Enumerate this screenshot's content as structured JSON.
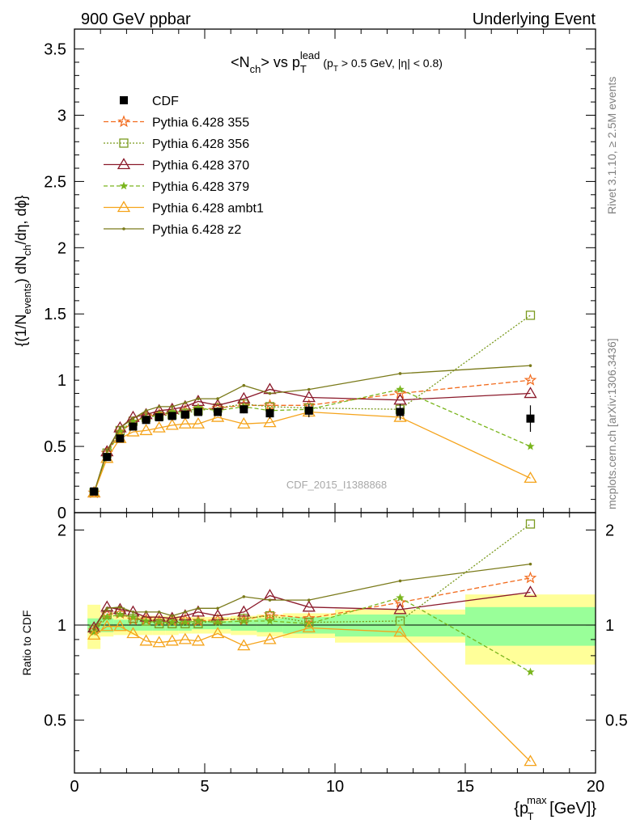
{
  "header": {
    "left": "900 GeV ppbar",
    "right": "Underlying Event"
  },
  "side_text": {
    "top": "Rivet 3.1.10, ≥ 2.5M events",
    "bottom": "mcplots.cern.ch [arXiv:1306.3436]"
  },
  "watermark": "CDF_2015_I1388868",
  "chart_data": [
    {
      "type": "line",
      "title_parts": {
        "a": "<N",
        "b": "ch",
        "c": "> vs p",
        "d": "T",
        "e": "lead",
        "f": "(p",
        "g": "T",
        "h": " > 0.5 GeV, |η| < 0.8)"
      },
      "ylabel_parts": {
        "a": "{(1/N",
        "b": "events",
        "c": ") dN",
        "d": "ch",
        "e": "/dη, dϕ}"
      },
      "xlim": [
        0,
        20
      ],
      "ylim": [
        0,
        3.65
      ],
      "yticks": [
        "0",
        "0.5",
        "1",
        "1.5",
        "2",
        "2.5",
        "3",
        "3.5"
      ],
      "grid": false,
      "legend_position": "top-left",
      "legend": [
        {
          "label": "CDF",
          "color": "#000000",
          "marker": "square-filled",
          "dash": ""
        },
        {
          "label": "Pythia 6.428 355",
          "color": "#f26b1d",
          "marker": "star-open",
          "dash": "6,3"
        },
        {
          "label": "Pythia 6.428 356",
          "color": "#7a9a1e",
          "marker": "square-open",
          "dash": "2,2"
        },
        {
          "label": "Pythia 6.428 370",
          "color": "#8b1a2b",
          "marker": "triangle-open",
          "dash": ""
        },
        {
          "label": "Pythia 6.428 379",
          "color": "#7ab51d",
          "marker": "star-filled",
          "dash": "5,3"
        },
        {
          "label": "Pythia 6.428 ambt1",
          "color": "#f5a31a",
          "marker": "triangle-open",
          "dash": ""
        },
        {
          "label": "Pythia 6.428 z2",
          "color": "#7a7a1a",
          "marker": "dot",
          "dash": ""
        }
      ],
      "x": [
        0.75,
        1.25,
        1.75,
        2.25,
        2.75,
        3.25,
        3.75,
        4.25,
        4.75,
        5.5,
        6.5,
        7.5,
        9.0,
        12.5,
        17.5
      ],
      "data": {
        "name": "CDF",
        "y": [
          0.16,
          0.42,
          0.56,
          0.65,
          0.7,
          0.72,
          0.73,
          0.74,
          0.76,
          0.76,
          0.78,
          0.75,
          0.77,
          0.76,
          0.71
        ],
        "err": [
          0.01,
          0.02,
          0.02,
          0.02,
          0.02,
          0.02,
          0.02,
          0.02,
          0.02,
          0.02,
          0.03,
          0.04,
          0.05,
          0.06,
          0.1
        ]
      },
      "series": [
        {
          "name": "Pythia 6.428 355",
          "color": "#f26b1d",
          "y": [
            0.15,
            0.45,
            0.61,
            0.68,
            0.73,
            0.74,
            0.75,
            0.77,
            0.78,
            0.79,
            0.81,
            0.81,
            0.81,
            0.9,
            1.0
          ]
        },
        {
          "name": "Pythia 6.428 356",
          "color": "#7a9a1e",
          "y": [
            0.15,
            0.45,
            0.62,
            0.69,
            0.72,
            0.73,
            0.74,
            0.75,
            0.77,
            0.79,
            0.82,
            0.8,
            0.79,
            0.78,
            1.49
          ]
        },
        {
          "name": "Pythia 6.428 370",
          "color": "#8b1a2b",
          "y": [
            0.15,
            0.46,
            0.64,
            0.72,
            0.74,
            0.77,
            0.78,
            0.8,
            0.84,
            0.81,
            0.86,
            0.93,
            0.87,
            0.85,
            0.9
          ]
        },
        {
          "name": "Pythia 6.428 379",
          "color": "#7ab51d",
          "y": [
            0.15,
            0.44,
            0.61,
            0.69,
            0.72,
            0.74,
            0.76,
            0.76,
            0.79,
            0.77,
            0.8,
            0.77,
            0.78,
            0.93,
            0.5
          ]
        },
        {
          "name": "Pythia 6.428 ambt1",
          "color": "#f5a31a",
          "y": [
            0.15,
            0.41,
            0.56,
            0.61,
            0.62,
            0.64,
            0.66,
            0.67,
            0.67,
            0.72,
            0.67,
            0.68,
            0.76,
            0.72,
            0.26
          ]
        },
        {
          "name": "Pythia 6.428 z2",
          "color": "#7a7a1a",
          "y": [
            0.15,
            0.47,
            0.64,
            0.71,
            0.77,
            0.8,
            0.8,
            0.83,
            0.86,
            0.86,
            0.96,
            0.9,
            0.93,
            1.05,
            1.11
          ]
        }
      ]
    },
    {
      "type": "line",
      "ylabel": "Ratio to CDF",
      "xlabel_parts": {
        "a": "{p",
        "b": "max",
        "c": "T",
        "d": " [GeV]}"
      },
      "xlim": [
        0,
        20
      ],
      "ylim": [
        0.34,
        2.27
      ],
      "ytick_labels": [
        "0.5",
        "1",
        "2"
      ],
      "xtick_labels": [
        "0",
        "5",
        "10",
        "15",
        "20"
      ],
      "uncertainty_bands": [
        {
          "x0": 0.5,
          "x1": 1.0,
          "stat": 0.05,
          "total": 0.16
        },
        {
          "x0": 1.0,
          "x1": 1.5,
          "stat": 0.05,
          "total": 0.08
        },
        {
          "x0": 1.5,
          "x1": 2.0,
          "stat": 0.04,
          "total": 0.07
        },
        {
          "x0": 2.0,
          "x1": 2.5,
          "stat": 0.04,
          "total": 0.07
        },
        {
          "x0": 2.5,
          "x1": 3.0,
          "stat": 0.04,
          "total": 0.07
        },
        {
          "x0": 3.0,
          "x1": 3.5,
          "stat": 0.04,
          "total": 0.07
        },
        {
          "x0": 3.5,
          "x1": 4.0,
          "stat": 0.04,
          "total": 0.07
        },
        {
          "x0": 4.0,
          "x1": 4.5,
          "stat": 0.04,
          "total": 0.06
        },
        {
          "x0": 4.5,
          "x1": 5.0,
          "stat": 0.03,
          "total": 0.06
        },
        {
          "x0": 5.0,
          "x1": 6.0,
          "stat": 0.03,
          "total": 0.06
        },
        {
          "x0": 6.0,
          "x1": 7.0,
          "stat": 0.04,
          "total": 0.07
        },
        {
          "x0": 7.0,
          "x1": 8.0,
          "stat": 0.05,
          "total": 0.08
        },
        {
          "x0": 8.0,
          "x1": 10.0,
          "stat": 0.06,
          "total": 0.09
        },
        {
          "x0": 10.0,
          "x1": 15.0,
          "stat": 0.08,
          "total": 0.12
        },
        {
          "x0": 15.0,
          "x1": 20.0,
          "stat": 0.14,
          "total": 0.25
        }
      ],
      "x": [
        0.75,
        1.25,
        1.75,
        2.25,
        2.75,
        3.25,
        3.75,
        4.25,
        4.75,
        5.5,
        6.5,
        7.5,
        9.0,
        12.5,
        17.5
      ],
      "series": [
        {
          "name": "Pythia 6.428 355",
          "color": "#f26b1d",
          "y": [
            0.96,
            1.08,
            1.09,
            1.04,
            1.04,
            1.03,
            1.03,
            1.04,
            1.03,
            1.04,
            1.04,
            1.08,
            1.05,
            1.18,
            1.41
          ]
        },
        {
          "name": "Pythia 6.428 356",
          "color": "#7a9a1e",
          "y": [
            0.97,
            1.08,
            1.1,
            1.05,
            1.03,
            1.01,
            1.01,
            1.01,
            1.01,
            1.04,
            1.05,
            1.07,
            1.02,
            1.03,
            2.09
          ]
        },
        {
          "name": "Pythia 6.428 370",
          "color": "#8b1a2b",
          "y": [
            0.98,
            1.14,
            1.12,
            1.1,
            1.06,
            1.06,
            1.05,
            1.07,
            1.1,
            1.07,
            1.1,
            1.24,
            1.14,
            1.12,
            1.27
          ]
        },
        {
          "name": "Pythia 6.428 379",
          "color": "#7ab51d",
          "y": [
            0.95,
            1.06,
            1.08,
            1.06,
            1.03,
            1.02,
            1.02,
            1.02,
            1.03,
            1.02,
            1.03,
            1.03,
            1.01,
            1.22,
            0.71
          ]
        },
        {
          "name": "Pythia 6.428 ambt1",
          "color": "#f5a31a",
          "y": [
            0.93,
            0.99,
            0.99,
            0.94,
            0.89,
            0.88,
            0.89,
            0.9,
            0.89,
            0.94,
            0.86,
            0.9,
            0.98,
            0.95,
            0.37
          ]
        },
        {
          "name": "Pythia 6.428 z2",
          "color": "#7a7a1a",
          "y": [
            0.97,
            1.13,
            1.14,
            1.1,
            1.1,
            1.1,
            1.07,
            1.1,
            1.13,
            1.13,
            1.23,
            1.2,
            1.2,
            1.38,
            1.56
          ]
        }
      ]
    }
  ]
}
